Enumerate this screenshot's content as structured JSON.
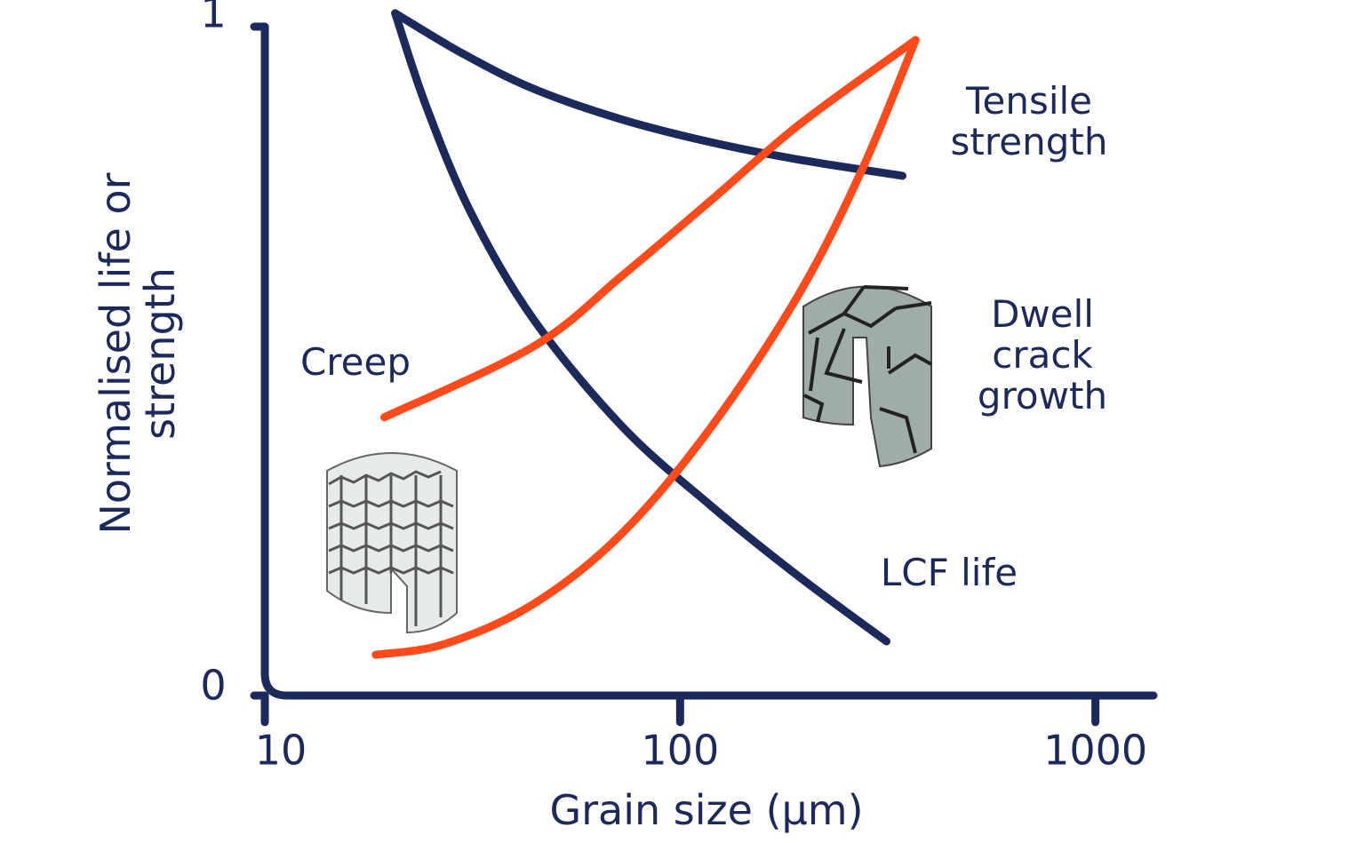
{
  "chart_data": {
    "type": "line",
    "x_label": "Grain size (μm)",
    "y_label": "Normalised life or strength",
    "x_scale": "log",
    "xlim": [
      10,
      1380
    ],
    "xticks": [
      10,
      100,
      1000
    ],
    "ylim": [
      0,
      1
    ],
    "yticks": [
      0,
      1
    ],
    "series": [
      {
        "name": "Tensile strength",
        "color": "#1b2a5a",
        "x": [
          20.6,
          29.9,
          44.4,
          72.6,
          119,
          194,
          343
        ],
        "values": [
          1.02,
          0.96,
          0.907,
          0.861,
          0.827,
          0.801,
          0.777
        ]
      },
      {
        "name": "LCF life",
        "color": "#1b2a5a",
        "x": [
          20.6,
          24.5,
          31.4,
          44.4,
          72.6,
          119,
          194,
          314
        ],
        "values": [
          1.02,
          0.88,
          0.721,
          0.562,
          0.402,
          0.283,
          0.177,
          0.081
        ]
      },
      {
        "name": "Creep",
        "color": "#ff4a1c",
        "x": [
          19.4,
          44.4,
          72.6,
          119,
          194,
          369
        ],
        "values": [
          0.416,
          0.522,
          0.628,
          0.741,
          0.854,
          0.98
        ]
      },
      {
        "name": "Dwell crack growth",
        "color": "#ff4a1c",
        "x": [
          18.5,
          27.1,
          44.4,
          72.6,
          119,
          194,
          275,
          369
        ],
        "values": [
          0.061,
          0.077,
          0.137,
          0.243,
          0.402,
          0.602,
          0.788,
          0.98
        ]
      }
    ]
  }
}
